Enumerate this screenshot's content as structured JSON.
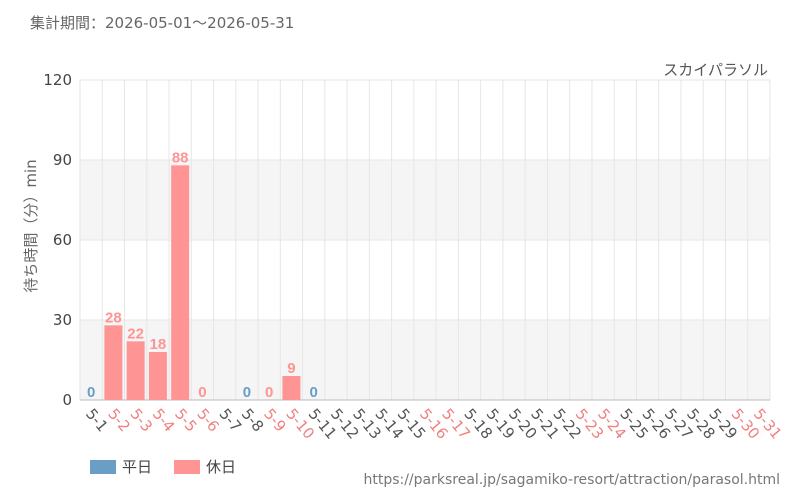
{
  "header": {
    "period": "集計期間：2026-05-01〜2026-05-31"
  },
  "chart_data": {
    "type": "bar",
    "title": "スカイパラソル",
    "ylabel": "待ち時間（分）min",
    "xlabel": "",
    "ylim": [
      0,
      120
    ],
    "yticks": [
      0,
      30,
      60,
      90,
      120
    ],
    "grid": true,
    "legend_position": "bottom-left",
    "categories": [
      "5-1",
      "5-2",
      "5-3",
      "5-4",
      "5-5",
      "5-6",
      "5-7",
      "5-8",
      "5-9",
      "5-10",
      "5-11",
      "5-12",
      "5-13",
      "5-14",
      "5-15",
      "5-16",
      "5-17",
      "5-18",
      "5-19",
      "5-20",
      "5-21",
      "5-22",
      "5-23",
      "5-24",
      "5-25",
      "5-26",
      "5-27",
      "5-28",
      "5-29",
      "5-30",
      "5-31"
    ],
    "day_type": [
      "weekday",
      "holiday",
      "holiday",
      "holiday",
      "holiday",
      "holiday",
      "weekday",
      "weekday",
      "holiday",
      "holiday",
      "weekday",
      "weekday",
      "weekday",
      "weekday",
      "weekday",
      "holiday",
      "holiday",
      "weekday",
      "weekday",
      "weekday",
      "weekday",
      "weekday",
      "holiday",
      "holiday",
      "weekday",
      "weekday",
      "weekday",
      "weekday",
      "weekday",
      "holiday",
      "holiday"
    ],
    "values": [
      0,
      28,
      22,
      18,
      88,
      0,
      null,
      0,
      0,
      9,
      0,
      null,
      null,
      null,
      null,
      null,
      null,
      null,
      null,
      null,
      null,
      null,
      null,
      null,
      null,
      null,
      null,
      null,
      null,
      null,
      null
    ],
    "series": [
      {
        "name": "平日",
        "color": "#6a9ec5",
        "key": "weekday"
      },
      {
        "name": "休日",
        "color": "#ff9494",
        "key": "holiday"
      }
    ],
    "colors": {
      "weekday_label": "#555555",
      "holiday_label": "#f08080",
      "grid": "#e6e6e6",
      "band": "#f5f5f5"
    }
  },
  "footer": {
    "source": "https://parksreal.jp/sagamiko-resort/attraction/parasol.html"
  }
}
